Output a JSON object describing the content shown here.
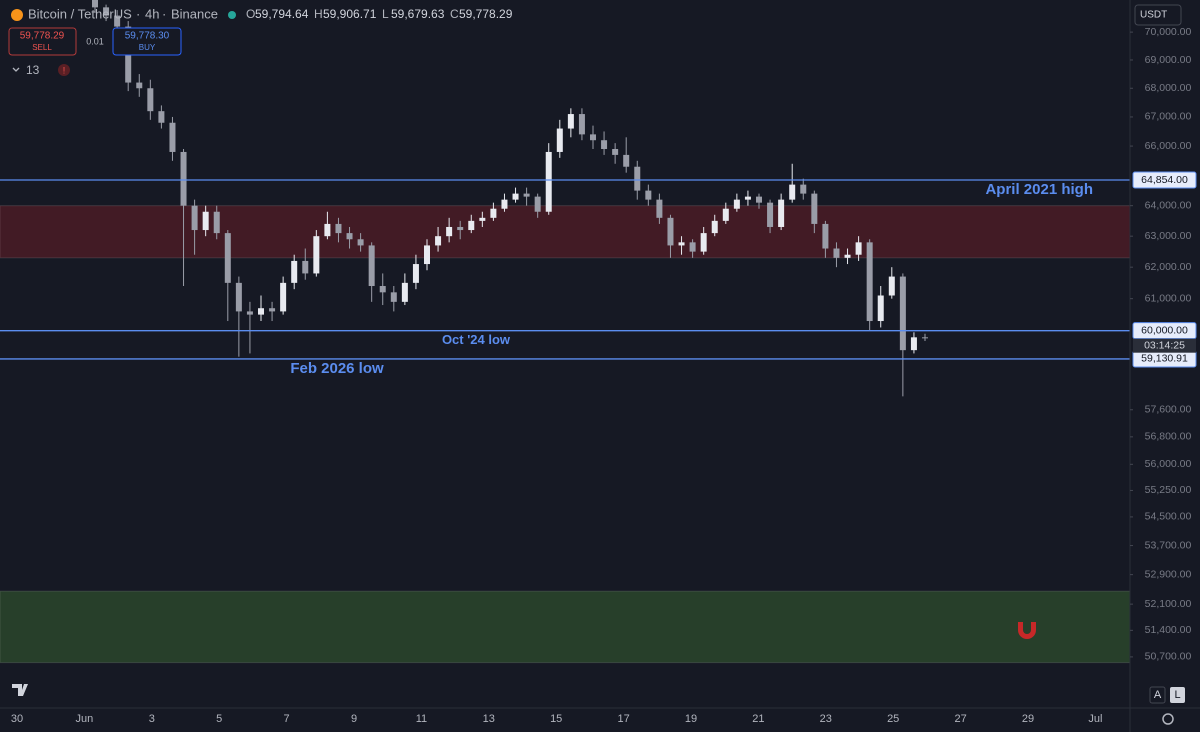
{
  "header": {
    "symbol": "Bitcoin / TetherUS",
    "interval": "4h",
    "exchange": "Binance",
    "ohlc": [
      {
        "key": "O",
        "value": "59,794.64"
      },
      {
        "key": "H",
        "value": "59,906.71"
      },
      {
        "key": "L",
        "value": "59,679.63"
      },
      {
        "key": "C",
        "value": "59,778.29"
      }
    ],
    "sell_price": "59,778.29",
    "sell": "SELL",
    "spread": "0.01",
    "buy_price": "59,778.30",
    "buy": "BUY",
    "indicators": "13",
    "currency": "USDT",
    "auto": "A",
    "log": "L"
  },
  "chart_data": {
    "type": "candlestick",
    "log_scale": true,
    "grid": false,
    "up_color": "#e8eaf0",
    "down_color": "#9a9da8",
    "ylim": [
      49380,
      71170
    ],
    "yticks": [
      {
        "value": 70000,
        "label": "70,000.00"
      },
      {
        "value": 69000,
        "label": "69,000.00"
      },
      {
        "value": 68000,
        "label": "68,000.00"
      },
      {
        "value": 67000,
        "label": "67,000.00"
      },
      {
        "value": 66000,
        "label": "66,000.00"
      },
      {
        "value": 64000,
        "label": "64,000.00"
      },
      {
        "value": 63000,
        "label": "63,000.00"
      },
      {
        "value": 62000,
        "label": "62,000.00"
      },
      {
        "value": 61000,
        "label": "61,000.00"
      },
      {
        "value": 57600,
        "label": "57,600.00"
      },
      {
        "value": 56800,
        "label": "56,800.00"
      },
      {
        "value": 56000,
        "label": "56,000.00"
      },
      {
        "value": 55250,
        "label": "55,250.00"
      },
      {
        "value": 54500,
        "label": "54,500.00"
      },
      {
        "value": 53700,
        "label": "53,700.00"
      },
      {
        "value": 52900,
        "label": "52,900.00"
      },
      {
        "value": 52100,
        "label": "52,100.00"
      },
      {
        "value": 51400,
        "label": "51,400.00"
      },
      {
        "value": 50700,
        "label": "50,700.00"
      }
    ],
    "x_labels": [
      "30",
      "Jun",
      "3",
      "5",
      "7",
      "9",
      "11",
      "13",
      "15",
      "17",
      "19",
      "21",
      "23",
      "25",
      "27",
      "29",
      "Jul"
    ],
    "zones": [
      {
        "from": 62300,
        "to": 64000,
        "color": "rgba(120,30,40,0.45)"
      },
      {
        "from": 50550,
        "to": 52450,
        "color": "rgba(60,110,50,0.45)"
      }
    ],
    "levels": {
      "values": [
        64854,
        60000,
        59130.91
      ],
      "value_labels": [
        "64,854.00",
        "60,000.00",
        "59,130.91"
      ],
      "names": [
        "April 2021 high",
        "Oct '24 low",
        "Feb 2026 low"
      ],
      "color": "#5b8def"
    },
    "countdown": "03:14:25",
    "candles": [
      [
        71200,
        71400,
        70700,
        70900
      ],
      [
        70900,
        71000,
        70400,
        70600
      ],
      [
        70600,
        70800,
        70000,
        70200
      ],
      [
        70200,
        70400,
        67900,
        68200
      ],
      [
        68200,
        68500,
        67700,
        68000
      ],
      [
        68000,
        68300,
        66900,
        67200
      ],
      [
        67200,
        67400,
        66600,
        66800
      ],
      [
        66800,
        67000,
        65500,
        65800
      ],
      [
        65800,
        65900,
        61400,
        64000
      ],
      [
        64000,
        64200,
        62400,
        63200
      ],
      [
        63200,
        64000,
        63000,
        63800
      ],
      [
        63800,
        64000,
        62900,
        63100
      ],
      [
        63100,
        63200,
        60300,
        61500
      ],
      [
        61500,
        61700,
        59200,
        60600
      ],
      [
        60600,
        60900,
        59300,
        60500
      ],
      [
        60500,
        61100,
        60300,
        60700
      ],
      [
        60700,
        60900,
        60300,
        60600
      ],
      [
        60600,
        61700,
        60500,
        61500
      ],
      [
        61500,
        62400,
        61300,
        62200
      ],
      [
        62200,
        62600,
        61600,
        61800
      ],
      [
        61800,
        63200,
        61700,
        63000
      ],
      [
        63000,
        63800,
        62900,
        63400
      ],
      [
        63400,
        63600,
        62800,
        63100
      ],
      [
        63100,
        63300,
        62600,
        62900
      ],
      [
        62900,
        63100,
        62500,
        62700
      ],
      [
        62700,
        62800,
        60900,
        61400
      ],
      [
        61400,
        61800,
        60800,
        61200
      ],
      [
        61200,
        61400,
        60600,
        60900
      ],
      [
        60900,
        61800,
        60800,
        61500
      ],
      [
        61500,
        62400,
        61300,
        62100
      ],
      [
        62100,
        62900,
        61900,
        62700
      ],
      [
        62700,
        63300,
        62500,
        63000
      ],
      [
        63000,
        63600,
        62800,
        63300
      ],
      [
        63300,
        63500,
        62900,
        63200
      ],
      [
        63200,
        63700,
        63100,
        63500
      ],
      [
        63500,
        63800,
        63300,
        63600
      ],
      [
        63600,
        64100,
        63500,
        63900
      ],
      [
        63900,
        64400,
        63800,
        64200
      ],
      [
        64200,
        64600,
        64100,
        64400
      ],
      [
        64400,
        64600,
        64000,
        64300
      ],
      [
        64300,
        64400,
        63600,
        63800
      ],
      [
        63800,
        66100,
        63700,
        65800
      ],
      [
        65800,
        66900,
        65600,
        66600
      ],
      [
        66600,
        67300,
        66300,
        67100
      ],
      [
        67100,
        67300,
        66200,
        66400
      ],
      [
        66400,
        66700,
        65900,
        66200
      ],
      [
        66200,
        66500,
        65700,
        65900
      ],
      [
        65900,
        66100,
        65400,
        65700
      ],
      [
        65700,
        66300,
        65100,
        65300
      ],
      [
        65300,
        65500,
        64200,
        64500
      ],
      [
        64500,
        64700,
        64000,
        64200
      ],
      [
        64200,
        64400,
        63400,
        63600
      ],
      [
        63600,
        63700,
        62300,
        62700
      ],
      [
        62700,
        63000,
        62400,
        62800
      ],
      [
        62800,
        62900,
        62300,
        62500
      ],
      [
        62500,
        63300,
        62400,
        63100
      ],
      [
        63100,
        63700,
        63000,
        63500
      ],
      [
        63500,
        64100,
        63400,
        63900
      ],
      [
        63900,
        64400,
        63800,
        64200
      ],
      [
        64200,
        64500,
        64000,
        64300
      ],
      [
        64300,
        64400,
        63900,
        64100
      ],
      [
        64100,
        64200,
        63100,
        63300
      ],
      [
        63300,
        64400,
        63200,
        64200
      ],
      [
        64200,
        65400,
        64100,
        64700
      ],
      [
        64700,
        64900,
        64200,
        64400
      ],
      [
        64400,
        64500,
        63100,
        63400
      ],
      [
        63400,
        63500,
        62300,
        62600
      ],
      [
        62600,
        62800,
        62000,
        62300
      ],
      [
        62300,
        62600,
        62100,
        62400
      ],
      [
        62400,
        63000,
        62200,
        62800
      ],
      [
        62800,
        62900,
        60000,
        60300
      ],
      [
        60300,
        61400,
        60100,
        61100
      ],
      [
        61100,
        62000,
        61000,
        61700
      ],
      [
        61700,
        61800,
        58000,
        59400
      ],
      [
        59400,
        59950,
        59300,
        59794.64
      ],
      [
        59794.64,
        59906.71,
        59679.63,
        59778.29
      ]
    ]
  }
}
